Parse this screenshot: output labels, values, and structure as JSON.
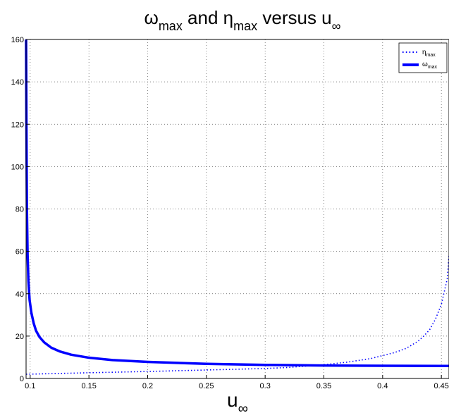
{
  "chart_data": {
    "type": "line",
    "title": {
      "p1": "ω",
      "s1": "max",
      "p2": " and η",
      "s2": "max",
      "p3": " versus u",
      "s3": "∞"
    },
    "xlabel": {
      "main": "u",
      "sub": "∞"
    },
    "ylabel": "",
    "xlim": [
      0.0965,
      0.4565
    ],
    "ylim": [
      0,
      160
    ],
    "x_ticks": [
      0.1,
      0.15,
      0.2,
      0.25,
      0.3,
      0.35,
      0.4,
      0.45
    ],
    "x_tick_labels": [
      "0.1",
      "0.15",
      "0.2",
      "0.25",
      "0.3",
      "0.35",
      "0.4",
      "0.45"
    ],
    "y_ticks": [
      0,
      20,
      40,
      60,
      80,
      100,
      120,
      140,
      160
    ],
    "y_tick_labels": [
      "0",
      "20",
      "40",
      "60",
      "80",
      "100",
      "120",
      "140",
      "160"
    ],
    "grid": true,
    "legend_position": "top-right",
    "series": [
      {
        "name": {
          "main": "η",
          "sub": "max"
        },
        "style": "dotted",
        "color": "#0000ff",
        "points": [
          [
            0.0965,
            2.0
          ],
          [
            0.12,
            2.3
          ],
          [
            0.15,
            2.7
          ],
          [
            0.2,
            3.3
          ],
          [
            0.25,
            4.0
          ],
          [
            0.3,
            4.7
          ],
          [
            0.32,
            5.2
          ],
          [
            0.35,
            6.5
          ],
          [
            0.37,
            7.7
          ],
          [
            0.39,
            9.4
          ],
          [
            0.41,
            12.2
          ],
          [
            0.42,
            14.2
          ],
          [
            0.43,
            17.5
          ],
          [
            0.435,
            20.0
          ],
          [
            0.44,
            23.0
          ],
          [
            0.445,
            28.0
          ],
          [
            0.45,
            35.0
          ],
          [
            0.455,
            47.0
          ],
          [
            0.4565,
            58.0
          ]
        ]
      },
      {
        "name": {
          "main": "ω",
          "sub": "max"
        },
        "style": "solid",
        "color": "#0000ff",
        "points": [
          [
            0.0965,
            160.0
          ],
          [
            0.0968,
            120.0
          ],
          [
            0.0972,
            80.0
          ],
          [
            0.0978,
            58.0
          ],
          [
            0.0985,
            46.0
          ],
          [
            0.0995,
            37.0
          ],
          [
            0.101,
            31.0
          ],
          [
            0.103,
            26.0
          ],
          [
            0.105,
            22.5
          ],
          [
            0.108,
            19.5
          ],
          [
            0.112,
            17.0
          ],
          [
            0.118,
            14.5
          ],
          [
            0.125,
            12.8
          ],
          [
            0.135,
            11.2
          ],
          [
            0.15,
            9.8
          ],
          [
            0.17,
            8.7
          ],
          [
            0.2,
            7.8
          ],
          [
            0.25,
            6.9
          ],
          [
            0.3,
            6.4
          ],
          [
            0.35,
            6.1
          ],
          [
            0.4,
            6.0
          ],
          [
            0.45,
            5.9
          ],
          [
            0.4565,
            5.9
          ]
        ]
      }
    ]
  },
  "colors": {
    "axis": "#000000",
    "grid": "#555555",
    "series": "#0000ff",
    "background": "#ffffff"
  }
}
